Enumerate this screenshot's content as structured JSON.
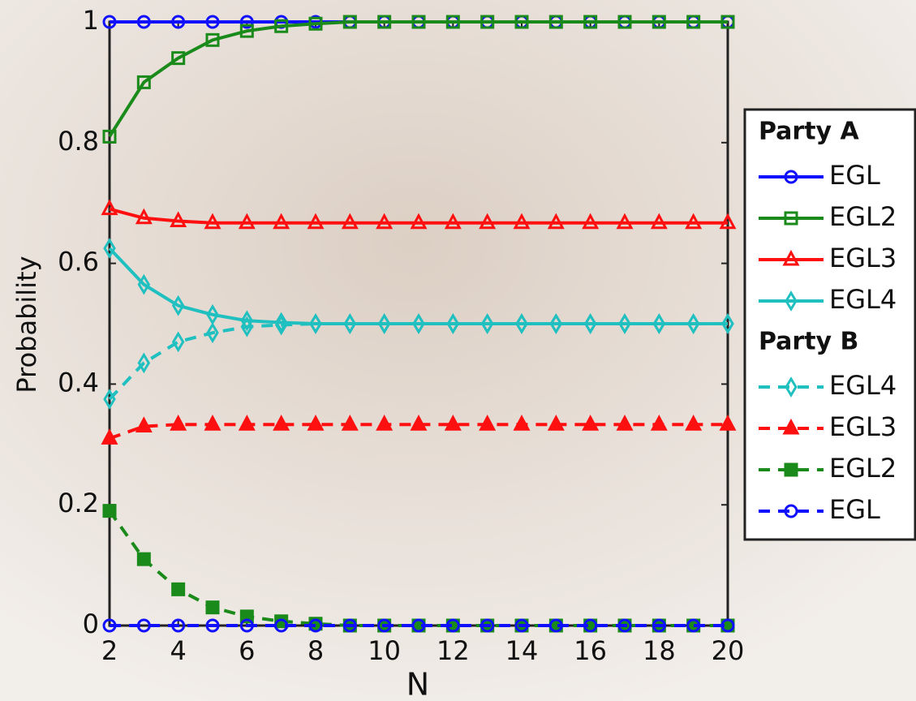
{
  "chart_data": {
    "type": "line",
    "xlabel": "N",
    "ylabel": "Probability",
    "x": [
      2,
      3,
      4,
      5,
      6,
      7,
      8,
      9,
      10,
      11,
      12,
      13,
      14,
      15,
      16,
      17,
      18,
      19,
      20
    ],
    "xlim": [
      2,
      20
    ],
    "ylim": [
      0,
      1
    ],
    "xticks": [
      2,
      4,
      6,
      8,
      10,
      12,
      14,
      16,
      18,
      20
    ],
    "yticks": [
      0,
      0.2,
      0.4,
      0.6,
      0.8,
      1
    ],
    "legend_titles": [
      "Party A",
      "Party B"
    ],
    "series": [
      {
        "name": "EGL",
        "color": "#1010ff",
        "marker": "circle",
        "dashed": false,
        "filled": false,
        "values": [
          1,
          1,
          1,
          1,
          1,
          1,
          1,
          1,
          1,
          1,
          1,
          1,
          1,
          1,
          1,
          1,
          1,
          1,
          1
        ]
      },
      {
        "name": "EGL2",
        "color": "#1a8a1a",
        "marker": "square",
        "dashed": false,
        "filled": false,
        "values": [
          0.81,
          0.9,
          0.94,
          0.97,
          0.985,
          0.993,
          0.997,
          1,
          1,
          1,
          1,
          1,
          1,
          1,
          1,
          1,
          1,
          1,
          1
        ]
      },
      {
        "name": "EGL3",
        "color": "#ff1010",
        "marker": "triangle",
        "dashed": false,
        "filled": false,
        "values": [
          0.69,
          0.675,
          0.67,
          0.667,
          0.667,
          0.667,
          0.667,
          0.667,
          0.667,
          0.667,
          0.667,
          0.667,
          0.667,
          0.667,
          0.667,
          0.667,
          0.667,
          0.667,
          0.667
        ]
      },
      {
        "name": "EGL4",
        "color": "#20c0c0",
        "marker": "diamond",
        "dashed": false,
        "filled": false,
        "values": [
          0.625,
          0.565,
          0.53,
          0.515,
          0.505,
          0.502,
          0.5,
          0.5,
          0.5,
          0.5,
          0.5,
          0.5,
          0.5,
          0.5,
          0.5,
          0.5,
          0.5,
          0.5,
          0.5
        ]
      },
      {
        "name": "EGL4",
        "color": "#20c0c0",
        "marker": "diamond",
        "dashed": true,
        "filled": false,
        "values": [
          0.375,
          0.435,
          0.47,
          0.485,
          0.495,
          0.498,
          0.5,
          0.5,
          0.5,
          0.5,
          0.5,
          0.5,
          0.5,
          0.5,
          0.5,
          0.5,
          0.5,
          0.5,
          0.5
        ]
      },
      {
        "name": "EGL3",
        "color": "#ff1010",
        "marker": "triangle",
        "dashed": true,
        "filled": true,
        "values": [
          0.31,
          0.33,
          0.333,
          0.333,
          0.333,
          0.333,
          0.333,
          0.333,
          0.333,
          0.333,
          0.333,
          0.333,
          0.333,
          0.333,
          0.333,
          0.333,
          0.333,
          0.333,
          0.333
        ]
      },
      {
        "name": "EGL2",
        "color": "#1a8a1a",
        "marker": "square",
        "dashed": true,
        "filled": true,
        "values": [
          0.19,
          0.11,
          0.06,
          0.03,
          0.015,
          0.007,
          0.003,
          0,
          0,
          0,
          0,
          0,
          0,
          0,
          0,
          0,
          0,
          0,
          0
        ]
      },
      {
        "name": "EGL",
        "color": "#1010ff",
        "marker": "circle",
        "dashed": true,
        "filled": false,
        "values": [
          0,
          0,
          0,
          0,
          0,
          0,
          0,
          0,
          0,
          0,
          0,
          0,
          0,
          0,
          0,
          0,
          0,
          0,
          0
        ]
      }
    ]
  }
}
